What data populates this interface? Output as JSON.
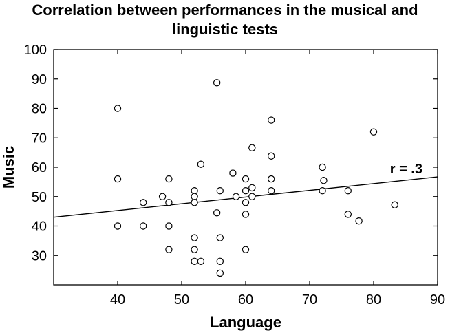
{
  "chart_data": {
    "type": "scatter",
    "title": [
      "Correlation between performances in the musical and",
      "linguistic tests"
    ],
    "xlabel": "Language",
    "ylabel": "Music",
    "xlim": [
      30,
      90
    ],
    "ylim": [
      20,
      100
    ],
    "xticks": [
      40,
      50,
      60,
      70,
      80,
      90
    ],
    "yticks": [
      30,
      40,
      50,
      60,
      70,
      80,
      90,
      100
    ],
    "grid": false,
    "annotation": "r = .3",
    "trendline": {
      "x": [
        30,
        90
      ],
      "y": [
        43,
        56.7
      ]
    },
    "points": [
      {
        "x": 40,
        "y": 80
      },
      {
        "x": 40,
        "y": 56
      },
      {
        "x": 40,
        "y": 40
      },
      {
        "x": 44,
        "y": 48
      },
      {
        "x": 44,
        "y": 40
      },
      {
        "x": 47,
        "y": 50
      },
      {
        "x": 48,
        "y": 56
      },
      {
        "x": 48,
        "y": 48
      },
      {
        "x": 48,
        "y": 40
      },
      {
        "x": 48,
        "y": 32
      },
      {
        "x": 52,
        "y": 52
      },
      {
        "x": 52,
        "y": 50
      },
      {
        "x": 52,
        "y": 48
      },
      {
        "x": 52,
        "y": 36
      },
      {
        "x": 52,
        "y": 32
      },
      {
        "x": 52,
        "y": 28
      },
      {
        "x": 53,
        "y": 61
      },
      {
        "x": 53,
        "y": 28
      },
      {
        "x": 55.5,
        "y": 88.7
      },
      {
        "x": 55.5,
        "y": 44.5
      },
      {
        "x": 56,
        "y": 52
      },
      {
        "x": 56,
        "y": 36
      },
      {
        "x": 56,
        "y": 28
      },
      {
        "x": 56,
        "y": 24
      },
      {
        "x": 58,
        "y": 58
      },
      {
        "x": 58.5,
        "y": 50
      },
      {
        "x": 60,
        "y": 56
      },
      {
        "x": 60,
        "y": 52
      },
      {
        "x": 60,
        "y": 48
      },
      {
        "x": 60,
        "y": 44
      },
      {
        "x": 60,
        "y": 32
      },
      {
        "x": 61,
        "y": 66.6
      },
      {
        "x": 61,
        "y": 53
      },
      {
        "x": 61,
        "y": 50
      },
      {
        "x": 64,
        "y": 76
      },
      {
        "x": 64,
        "y": 63.8
      },
      {
        "x": 64,
        "y": 56
      },
      {
        "x": 64,
        "y": 52
      },
      {
        "x": 72,
        "y": 60
      },
      {
        "x": 72.2,
        "y": 55.5
      },
      {
        "x": 72,
        "y": 52
      },
      {
        "x": 76,
        "y": 52
      },
      {
        "x": 76,
        "y": 44
      },
      {
        "x": 77.7,
        "y": 41.7
      },
      {
        "x": 80,
        "y": 72
      },
      {
        "x": 83.3,
        "y": 47.2
      }
    ]
  }
}
